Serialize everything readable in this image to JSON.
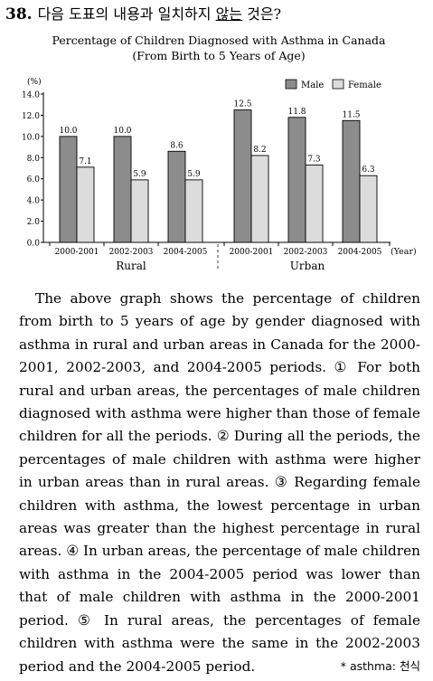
{
  "question": {
    "number": "38.",
    "text_before": "다음 도표의 내용과 일치하지 ",
    "text_underlined": "않는",
    "text_after": " 것은?"
  },
  "chart_data": {
    "type": "bar",
    "title": "Percentage of Children Diagnosed with Asthma in Canada",
    "subtitle": "(From Birth to 5 Years of Age)",
    "ylabel": "(%)",
    "xlabel": "(Year)",
    "ylim": [
      0,
      14
    ],
    "yticks": [
      "0.0",
      "2.0",
      "4.0",
      "6.0",
      "8.0",
      "10.0",
      "12.0",
      "14.0"
    ],
    "groups": [
      "Rural",
      "Urban"
    ],
    "categories": [
      "2000-2001",
      "2002-2003",
      "2004-2005",
      "2000-2001",
      "2002-2003",
      "2004-2005"
    ],
    "series": [
      {
        "name": "Male",
        "color": "#8c8c8c",
        "values": [
          10.0,
          10.0,
          8.6,
          12.5,
          11.8,
          11.5
        ],
        "labels": [
          "10.0",
          "10.0",
          "8.6",
          "12.5",
          "11.8",
          "11.5"
        ]
      },
      {
        "name": "Female",
        "color": "#dcdcdc",
        "values": [
          7.1,
          5.9,
          5.9,
          8.2,
          7.3,
          6.3
        ],
        "labels": [
          "7.1",
          "5.9",
          "5.9",
          "8.2",
          "7.3",
          "6.3"
        ]
      }
    ],
    "grid": false,
    "legend": "top-right"
  },
  "passage": [
    {
      "type": "text",
      "text": "The above graph shows the percentage of children from birth to 5 years of age by gender diagnosed with asthma in rural and urban areas in Canada for the 2000-2001, 2002-2003, and 2004-2005 periods. "
    },
    {
      "type": "marker",
      "text": "①"
    },
    {
      "type": "text",
      "text": " For both rural and urban areas, the percentages of male children diagnosed with asthma were higher than those of female children for all the periods. "
    },
    {
      "type": "marker",
      "text": "②"
    },
    {
      "type": "text",
      "text": " During all the periods, the percentages of male children with asthma were higher in urban areas than in rural areas. "
    },
    {
      "type": "marker",
      "text": "③"
    },
    {
      "type": "text",
      "text": " Regarding female children with asthma, the lowest percentage in urban areas was greater than the highest percentage in rural areas. "
    },
    {
      "type": "marker",
      "text": "④"
    },
    {
      "type": "text",
      "text": " In urban areas, the percentage of male children with asthma in the 2004-2005 period was lower than that of male children with asthma in the 2000-2001 period. "
    },
    {
      "type": "marker",
      "text": "⑤"
    },
    {
      "type": "text",
      "text": " In rural areas, the percentages of female children with asthma were the same in the 2002-2003 period and the 2004-2005 period."
    }
  ],
  "footnote": "* asthma: 천식"
}
